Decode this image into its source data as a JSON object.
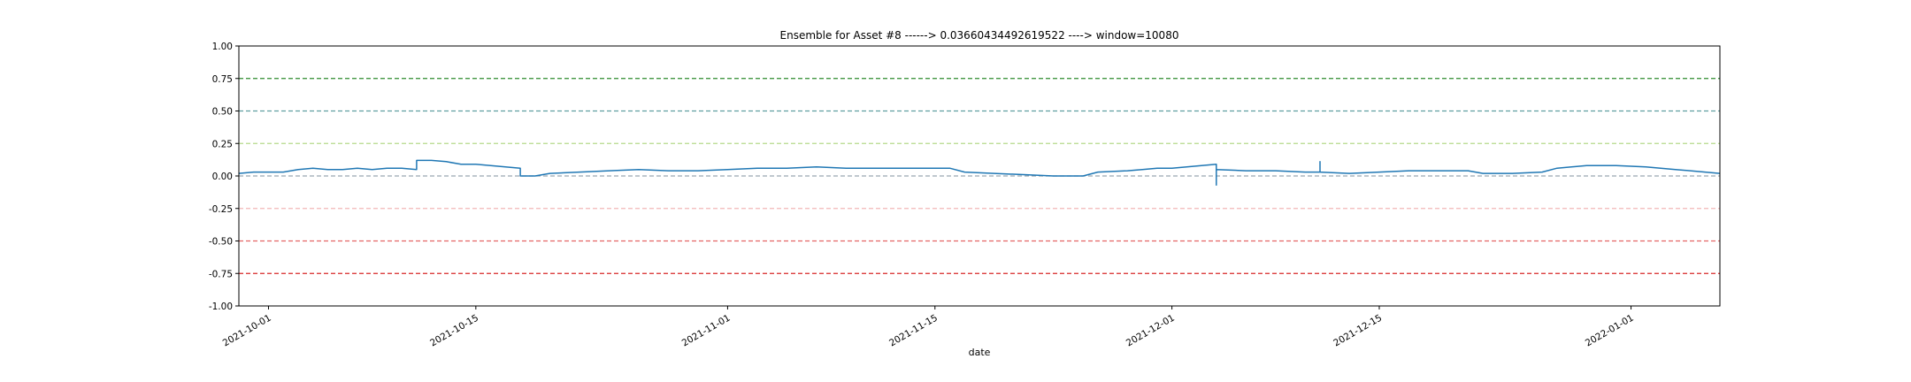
{
  "chart_data": {
    "type": "line",
    "title": "Ensemble for Asset #8 ------> 0.03660434492619522 ----> window=10080",
    "xlabel": "date",
    "ylabel": "",
    "ylim": [
      -1.0,
      1.0
    ],
    "xlim": [
      "2021-09-29",
      "2022-01-07"
    ],
    "yticks": [
      "-1.00",
      "-0.75",
      "-0.50",
      "-0.25",
      "0.00",
      "0.25",
      "0.50",
      "0.75",
      "1.00"
    ],
    "xticks": [
      "2021-10-01",
      "2021-10-15",
      "2021-11-01",
      "2021-11-15",
      "2021-12-01",
      "2021-12-15",
      "2022-01-01"
    ],
    "grid": false,
    "reference_lines": [
      {
        "y": 0.75,
        "color": "#2e8b2e",
        "style": "dashed"
      },
      {
        "y": 0.5,
        "color": "#5f9ea0",
        "style": "dashed"
      },
      {
        "y": 0.25,
        "color": "#b5d98a",
        "style": "dashed"
      },
      {
        "y": 0.0,
        "color": "#9aa7b0",
        "style": "dashed"
      },
      {
        "y": -0.25,
        "color": "#f2b8b8",
        "style": "dashed"
      },
      {
        "y": -0.5,
        "color": "#e46464",
        "style": "dashed"
      },
      {
        "y": -0.75,
        "color": "#d62728",
        "style": "dashed"
      }
    ],
    "series": [
      {
        "color": "#1f77b4",
        "points": [
          [
            "2021-09-29",
            0.02
          ],
          [
            "2021-09-30",
            0.03
          ],
          [
            "2021-10-01",
            0.03
          ],
          [
            "2021-10-02",
            0.03
          ],
          [
            "2021-10-03",
            0.05
          ],
          [
            "2021-10-04",
            0.06
          ],
          [
            "2021-10-05",
            0.05
          ],
          [
            "2021-10-06",
            0.05
          ],
          [
            "2021-10-07",
            0.06
          ],
          [
            "2021-10-08",
            0.05
          ],
          [
            "2021-10-09",
            0.06
          ],
          [
            "2021-10-10",
            0.06
          ],
          [
            "2021-10-11",
            0.05
          ],
          [
            "2021-10-11",
            0.12
          ],
          [
            "2021-10-12",
            0.12
          ],
          [
            "2021-10-13",
            0.11
          ],
          [
            "2021-10-14",
            0.09
          ],
          [
            "2021-10-15",
            0.09
          ],
          [
            "2021-10-16",
            0.08
          ],
          [
            "2021-10-17",
            0.07
          ],
          [
            "2021-10-18",
            0.06
          ],
          [
            "2021-10-18",
            0.0
          ],
          [
            "2021-10-19",
            0.0
          ],
          [
            "2021-10-20",
            0.02
          ],
          [
            "2021-10-22",
            0.03
          ],
          [
            "2021-10-24",
            0.04
          ],
          [
            "2021-10-26",
            0.05
          ],
          [
            "2021-10-28",
            0.04
          ],
          [
            "2021-10-30",
            0.04
          ],
          [
            "2021-11-01",
            0.05
          ],
          [
            "2021-11-03",
            0.06
          ],
          [
            "2021-11-05",
            0.06
          ],
          [
            "2021-11-07",
            0.07
          ],
          [
            "2021-11-09",
            0.06
          ],
          [
            "2021-11-11",
            0.06
          ],
          [
            "2021-11-13",
            0.06
          ],
          [
            "2021-11-15",
            0.06
          ],
          [
            "2021-11-16",
            0.06
          ],
          [
            "2021-11-17",
            0.03
          ],
          [
            "2021-11-19",
            0.02
          ],
          [
            "2021-11-21",
            0.01
          ],
          [
            "2021-11-23",
            0.0
          ],
          [
            "2021-11-25",
            0.0
          ],
          [
            "2021-11-26",
            0.03
          ],
          [
            "2021-11-28",
            0.04
          ],
          [
            "2021-11-29",
            0.05
          ],
          [
            "2021-11-30",
            0.06
          ],
          [
            "2021-12-01",
            0.06
          ],
          [
            "2021-12-02",
            0.07
          ],
          [
            "2021-12-03",
            0.08
          ],
          [
            "2021-12-04",
            0.09
          ],
          [
            "2021-12-04",
            -0.07
          ],
          [
            "2021-12-04",
            0.05
          ],
          [
            "2021-12-06",
            0.04
          ],
          [
            "2021-12-08",
            0.04
          ],
          [
            "2021-12-10",
            0.03
          ],
          [
            "2021-12-11",
            0.03
          ],
          [
            "2021-12-11",
            0.11
          ],
          [
            "2021-12-11",
            0.03
          ],
          [
            "2021-12-13",
            0.02
          ],
          [
            "2021-12-15",
            0.03
          ],
          [
            "2021-12-17",
            0.04
          ],
          [
            "2021-12-19",
            0.04
          ],
          [
            "2021-12-21",
            0.04
          ],
          [
            "2021-12-22",
            0.02
          ],
          [
            "2021-12-24",
            0.02
          ],
          [
            "2021-12-26",
            0.03
          ],
          [
            "2021-12-27",
            0.06
          ],
          [
            "2021-12-29",
            0.08
          ],
          [
            "2021-12-31",
            0.08
          ],
          [
            "2022-01-02",
            0.07
          ],
          [
            "2022-01-04",
            0.05
          ],
          [
            "2022-01-06",
            0.03
          ],
          [
            "2022-01-07",
            0.02
          ]
        ]
      }
    ]
  }
}
